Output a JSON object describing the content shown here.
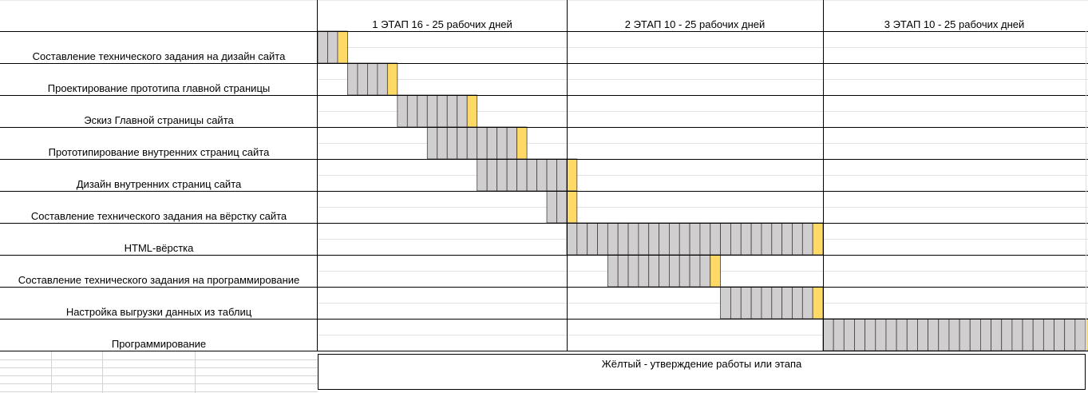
{
  "chart_data": {
    "type": "gantt",
    "stages": [
      {
        "label": "1 ЭТАП 16 - 25 рабочих дней",
        "start": 0,
        "end": 25
      },
      {
        "label": "2 ЭТАП 10 - 25 рабочих дней",
        "start": 25,
        "end": 50
      },
      {
        "label": "3 ЭТАП 10 - 25 рабочих дней",
        "start": 50,
        "end": 75
      }
    ],
    "tasks": [
      {
        "name": "Составление технического задания на дизайн сайта",
        "start": 0,
        "work_days": 2,
        "approval_days": 1
      },
      {
        "name": "Проектирование прототипа главной страницы",
        "start": 3,
        "work_days": 4,
        "approval_days": 1
      },
      {
        "name": "Эскиз Главной страницы сайта",
        "start": 8,
        "work_days": 7,
        "approval_days": 1
      },
      {
        "name": "Прототипирование внутренних страниц сайта",
        "start": 11,
        "work_days": 9,
        "approval_days": 1
      },
      {
        "name": "Дизайн внутренних страниц сайта",
        "start": 16,
        "work_days": 9,
        "approval_days": 1
      },
      {
        "name": "Составление технического задания на вёрстку сайта",
        "start": 23,
        "work_days": 2,
        "approval_days": 1
      },
      {
        "name": "HTML-вёрстка",
        "start": 25,
        "work_days": 24,
        "approval_days": 1
      },
      {
        "name": "Составление  технического задания на программирование",
        "start": 29,
        "work_days": 10,
        "approval_days": 1
      },
      {
        "name": "Настройка выгрузки данных из таблиц",
        "start": 40,
        "work_days": 9,
        "approval_days": 1
      },
      {
        "name": "Программирование",
        "start": 50,
        "work_days": 25,
        "approval_days": 1
      }
    ],
    "legend": "Жёлтый - утверждение работы или этапа",
    "colors": {
      "work": "#d0cece",
      "approval": "#ffd966",
      "grid": "#d4d4d4",
      "border": "#000000"
    }
  }
}
